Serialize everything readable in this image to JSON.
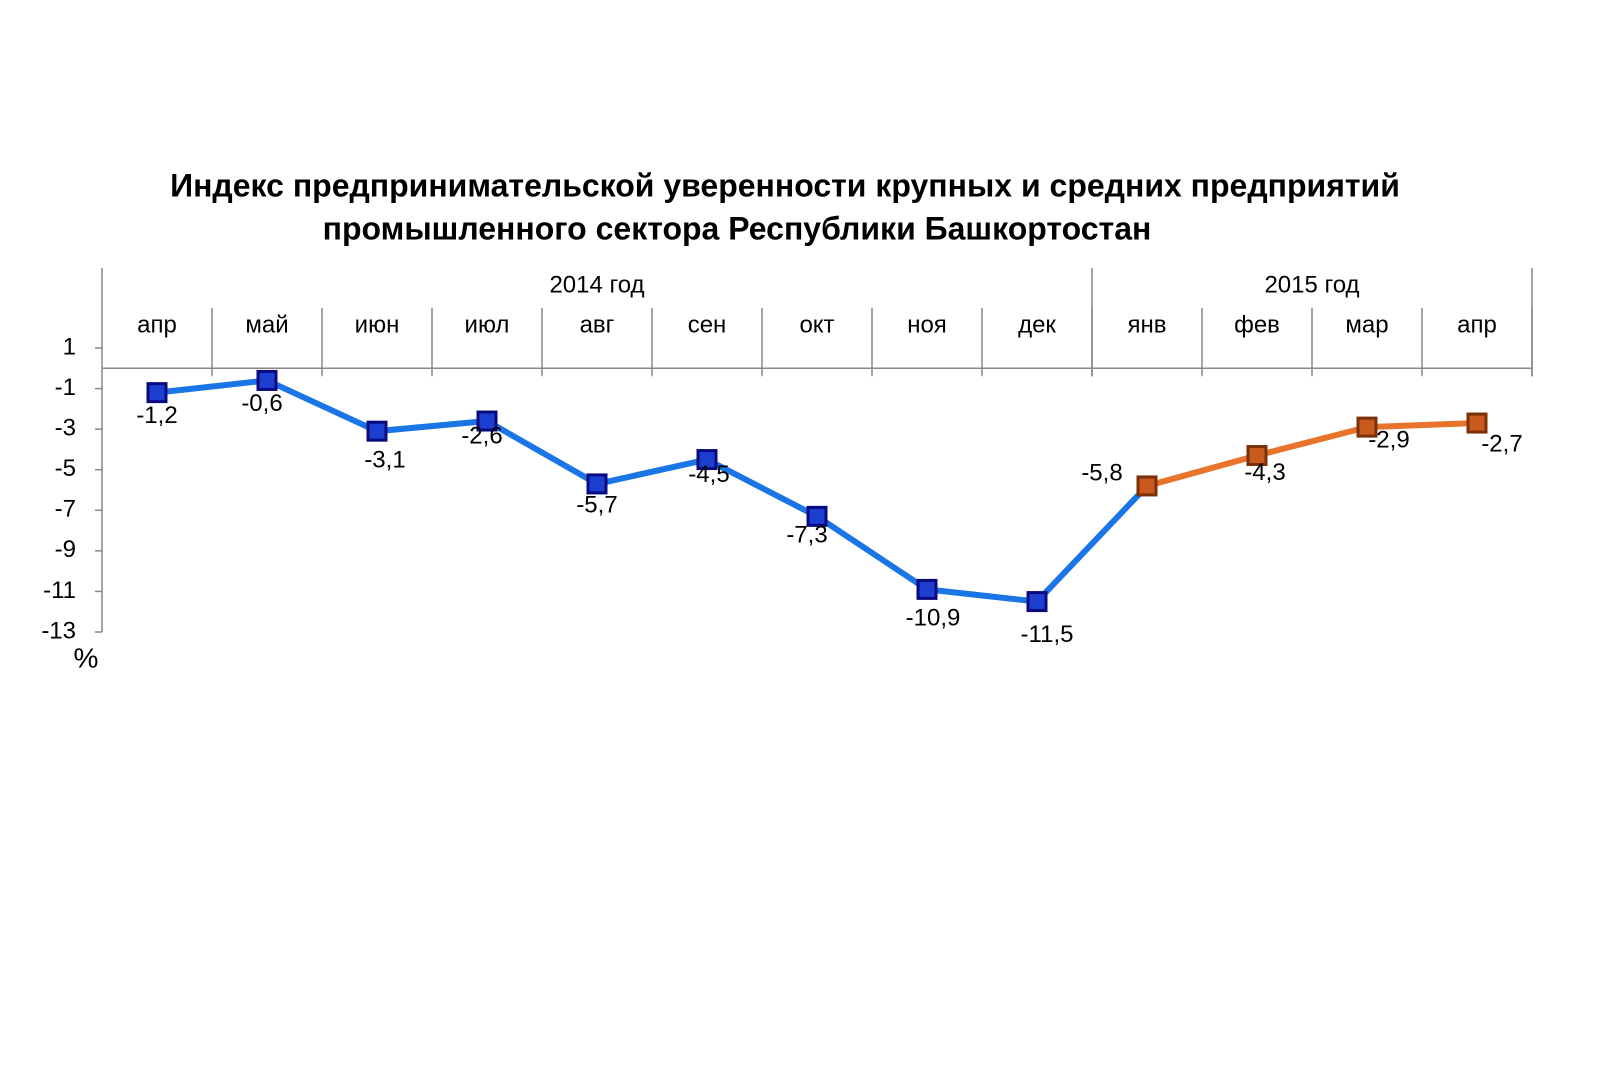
{
  "chart_data": {
    "type": "line",
    "title": [
      "Индекс предпринимательской уверенности крупных и средних предприятий",
      "промышленного сектора Республики Башкортостан"
    ],
    "y_label": "%",
    "groups": [
      {
        "label": "2014 год",
        "span": 9
      },
      {
        "label": "2015 год",
        "span": 4
      }
    ],
    "categories": [
      "апр",
      "май",
      "июн",
      "июл",
      "авг",
      "сен",
      "окт",
      "ноя",
      "дек",
      "янв",
      "фев",
      "мар",
      "апр"
    ],
    "series": [
      {
        "color": "#1a75e6",
        "marker_fill": "#1c3fd0",
        "marker_edge": "#0a0a80",
        "values": [
          -1.2,
          -0.6,
          -3.1,
          -2.6,
          -5.7,
          -4.5,
          -7.3,
          -10.9,
          -11.5,
          null,
          null,
          null,
          null
        ],
        "value_labels": [
          "-1,2",
          "-0,6",
          "-3,1",
          "-2,6",
          "-5,7",
          "-4,5",
          "-7,3",
          "-10,9",
          "-11,5",
          null,
          null,
          null,
          null
        ]
      },
      {
        "color": "#e8732a",
        "marker_fill": "#c85a1e",
        "marker_edge": "#7a3008",
        "values": [
          null,
          null,
          null,
          null,
          null,
          null,
          null,
          null,
          null,
          -5.8,
          -4.3,
          -2.9,
          -2.7
        ],
        "value_labels": [
          null,
          null,
          null,
          null,
          null,
          null,
          null,
          null,
          null,
          "-5,8",
          "-4,3",
          "-2,9",
          "-2,7"
        ]
      }
    ],
    "ylim": [
      -13,
      1
    ],
    "yticks": [
      1,
      -1,
      -3,
      -5,
      -7,
      -9,
      -11,
      -13
    ]
  }
}
